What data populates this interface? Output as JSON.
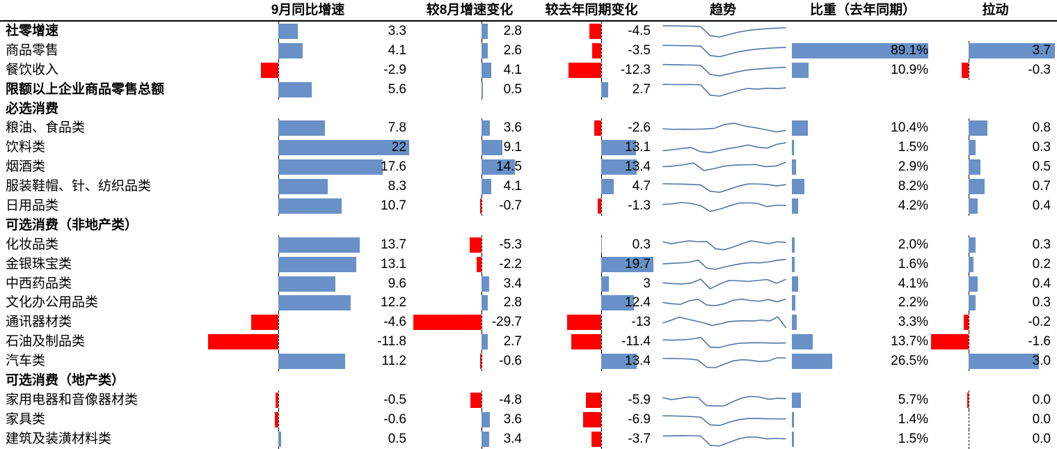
{
  "colors": {
    "positive_bar": "#6991C8",
    "negative_bar": "#FF0000",
    "sparkline": "#4F76A3",
    "axis_line": "#000000",
    "header_rule": "#000000",
    "text": "#000000"
  },
  "chart_data": {
    "type": "table",
    "title": "",
    "columns": [
      "9月同比增速",
      "较8月增速变化",
      "较去年同期变化",
      "趋势",
      "比重（去年同期）",
      "拉动"
    ],
    "bar_ranges": {
      "yoy": [
        -11.8,
        22
      ],
      "vs_aug": [
        -29.7,
        14.5
      ],
      "vs_last_year": [
        -13,
        19.7
      ],
      "weight": [
        0,
        89.1
      ],
      "pull": [
        -1.6,
        3.7
      ]
    },
    "rows": [
      {
        "label": "社零增速",
        "bold": true,
        "yoy": 3.3,
        "yoy_str": "3.3",
        "vs_aug": 2.8,
        "vs_aug_str": "2.8",
        "vs_yr": -4.5,
        "vs_yr_str": "-4.5",
        "trend": [
          0.85,
          0.84,
          0.83,
          0.82,
          0.8,
          0.22,
          0.14,
          0.3,
          0.45,
          0.55,
          0.62,
          0.66,
          0.7,
          0.72
        ],
        "weight": null,
        "weight_str": "",
        "pull": null,
        "pull_str": ""
      },
      {
        "label": "商品零售",
        "bold": false,
        "yoy": 4.1,
        "yoy_str": "4.1",
        "vs_aug": 2.6,
        "vs_aug_str": "2.6",
        "vs_yr": -3.5,
        "vs_yr_str": "-3.5",
        "trend": [
          0.84,
          0.83,
          0.82,
          0.81,
          0.79,
          0.2,
          0.13,
          0.28,
          0.44,
          0.54,
          0.61,
          0.65,
          0.69,
          0.71
        ],
        "weight": 89.1,
        "weight_str": "89.1%",
        "pull": 3.7,
        "pull_str": "3.7"
      },
      {
        "label": "餐饮收入",
        "bold": false,
        "yoy": -2.9,
        "yoy_str": "-2.9",
        "vs_aug": 4.1,
        "vs_aug_str": "4.1",
        "vs_yr": -12.3,
        "vs_yr_str": "-12.3",
        "trend": [
          0.86,
          0.85,
          0.84,
          0.83,
          0.81,
          0.24,
          0.15,
          0.28,
          0.42,
          0.52,
          0.58,
          0.62,
          0.66,
          0.69
        ],
        "weight": 10.9,
        "weight_str": "10.9%",
        "pull": -0.3,
        "pull_str": "-0.3"
      },
      {
        "label": "限额以上企业商品零售总额",
        "bold": true,
        "yoy": 5.6,
        "yoy_str": "5.6",
        "vs_aug": 0.5,
        "vs_aug_str": "0.5",
        "vs_yr": 2.7,
        "vs_yr_str": "2.7",
        "trend": [
          0.84,
          0.83,
          0.82,
          0.83,
          0.81,
          0.16,
          0.1,
          0.28,
          0.46,
          0.58,
          0.54,
          0.6,
          0.57,
          0.62
        ],
        "weight": null,
        "weight_str": "",
        "pull": null,
        "pull_str": ""
      },
      {
        "label": "必选消费",
        "bold": true,
        "yoy": null,
        "yoy_str": "",
        "vs_aug": null,
        "vs_aug_str": "",
        "vs_yr": null,
        "vs_yr_str": "",
        "trend": null,
        "weight": null,
        "weight_str": "",
        "pull": null,
        "pull_str": ""
      },
      {
        "label": "粮油、食品类",
        "bold": false,
        "yoy": 7.8,
        "yoy_str": "7.8",
        "vs_aug": 3.6,
        "vs_aug_str": "3.6",
        "vs_yr": -2.6,
        "vs_yr_str": "-2.6",
        "trend": [
          0.45,
          0.42,
          0.43,
          0.42,
          0.44,
          0.48,
          0.72,
          0.8,
          0.62,
          0.52,
          0.4,
          0.26,
          0.35
        ],
        "weight": 10.4,
        "weight_str": "10.4%",
        "pull": 0.8,
        "pull_str": "0.8"
      },
      {
        "label": "饮料类",
        "bold": false,
        "yoy": 22,
        "yoy_str": "22",
        "vs_aug": 9.1,
        "vs_aug_str": "9.1",
        "vs_yr": 13.1,
        "vs_yr_str": "13.1",
        "trend": [
          0.3,
          0.36,
          0.44,
          0.5,
          0.24,
          0.18,
          0.32,
          0.44,
          0.54,
          0.66,
          0.52,
          0.46,
          0.7,
          0.8
        ],
        "weight": 1.5,
        "weight_str": "1.5%",
        "pull": 0.3,
        "pull_str": "0.3"
      },
      {
        "label": "烟酒类",
        "bold": false,
        "yoy": 17.6,
        "yoy_str": "17.6",
        "vs_aug": 14.5,
        "vs_aug_str": "14.5",
        "vs_yr": 13.4,
        "vs_yr_str": "13.4",
        "trend": [
          0.52,
          0.56,
          0.64,
          0.76,
          0.28,
          0.4,
          0.56,
          0.62,
          0.64,
          0.66,
          0.52,
          0.56,
          0.8
        ],
        "weight": 2.9,
        "weight_str": "2.9%",
        "pull": 0.5,
        "pull_str": "0.5"
      },
      {
        "label": "服装鞋帽、针、纺织品类",
        "bold": false,
        "yoy": 8.3,
        "yoy_str": "8.3",
        "vs_aug": 4.1,
        "vs_aug_str": "4.1",
        "vs_yr": 4.7,
        "vs_yr_str": "4.7",
        "trend": [
          0.68,
          0.66,
          0.65,
          0.63,
          0.6,
          0.2,
          0.14,
          0.32,
          0.52,
          0.66,
          0.66,
          0.63,
          0.54,
          0.62
        ],
        "weight": 8.2,
        "weight_str": "8.2%",
        "pull": 0.7,
        "pull_str": "0.7"
      },
      {
        "label": "日用品类",
        "bold": false,
        "yoy": 10.7,
        "yoy_str": "10.7",
        "vs_aug": -0.7,
        "vs_aug_str": "-0.7",
        "vs_yr": -1.3,
        "vs_yr_str": "-1.3",
        "trend": [
          0.6,
          0.64,
          0.72,
          0.66,
          0.52,
          0.16,
          0.3,
          0.5,
          0.68,
          0.7,
          0.66,
          0.46,
          0.55,
          0.53
        ],
        "weight": 4.2,
        "weight_str": "4.2%",
        "pull": 0.4,
        "pull_str": "0.4"
      },
      {
        "label": "可选消费（非地产类）",
        "bold": true,
        "yoy": null,
        "yoy_str": "",
        "vs_aug": null,
        "vs_aug_str": "",
        "vs_yr": null,
        "vs_yr_str": "",
        "trend": null,
        "weight": null,
        "weight_str": "",
        "pull": null,
        "pull_str": ""
      },
      {
        "label": "化妆品类",
        "bold": false,
        "yoy": 13.7,
        "yoy_str": "13.7",
        "vs_aug": -5.3,
        "vs_aug_str": "-5.3",
        "vs_yr": 0.3,
        "vs_yr_str": "0.3",
        "trend": [
          0.7,
          0.58,
          0.68,
          0.76,
          0.7,
          0.72,
          0.26,
          0.2,
          0.38,
          0.58,
          0.76,
          0.68,
          0.58,
          0.7,
          0.66
        ],
        "weight": 2.0,
        "weight_str": "2.0%",
        "pull": 0.3,
        "pull_str": "0.3"
      },
      {
        "label": "金银珠宝类",
        "bold": false,
        "yoy": 13.1,
        "yoy_str": "13.1",
        "vs_aug": -2.2,
        "vs_aug_str": "-2.2",
        "vs_yr": 19.7,
        "vs_yr_str": "19.7",
        "trend": [
          0.54,
          0.57,
          0.6,
          0.64,
          0.78,
          0.28,
          0.2,
          0.34,
          0.46,
          0.56,
          0.62,
          0.6,
          0.66,
          0.76,
          0.82
        ],
        "weight": 1.6,
        "weight_str": "1.6%",
        "pull": 0.2,
        "pull_str": "0.2"
      },
      {
        "label": "中西药品类",
        "bold": false,
        "yoy": 9.6,
        "yoy_str": "9.6",
        "vs_aug": 3.4,
        "vs_aug_str": "3.4",
        "vs_yr": 3,
        "vs_yr_str": "3",
        "trend": [
          0.58,
          0.52,
          0.5,
          0.56,
          0.8,
          0.2,
          0.5,
          0.72,
          0.7,
          0.66,
          0.72,
          0.78,
          0.54,
          0.8
        ],
        "weight": 4.1,
        "weight_str": "4.1%",
        "pull": 0.4,
        "pull_str": "0.4"
      },
      {
        "label": "文化办公用品类",
        "bold": false,
        "yoy": 12.2,
        "yoy_str": "12.2",
        "vs_aug": 2.8,
        "vs_aug_str": "2.8",
        "vs_yr": 12.4,
        "vs_yr_str": "12.4",
        "trend": [
          0.52,
          0.44,
          0.4,
          0.62,
          0.72,
          0.36,
          0.32,
          0.44,
          0.66,
          0.72,
          0.64,
          0.6,
          0.7,
          0.56,
          0.74
        ],
        "weight": 2.2,
        "weight_str": "2.2%",
        "pull": 0.3,
        "pull_str": "0.3"
      },
      {
        "label": "通讯器材类",
        "bold": false,
        "yoy": -4.6,
        "yoy_str": "-4.6",
        "vs_aug": -29.7,
        "vs_aug_str": "-29.7",
        "vs_yr": -13,
        "vs_yr_str": "-13",
        "trend": [
          0.46,
          0.62,
          0.82,
          0.7,
          0.58,
          0.46,
          0.3,
          0.4,
          0.54,
          0.58,
          0.6,
          0.58,
          0.64,
          0.58,
          0.84,
          0.14
        ],
        "weight": 3.3,
        "weight_str": "3.3%",
        "pull": -0.2,
        "pull_str": "-0.2"
      },
      {
        "label": "石油及制品类",
        "bold": false,
        "yoy": -11.8,
        "yoy_str": "-11.8",
        "vs_aug": 2.7,
        "vs_aug_str": "2.7",
        "vs_yr": -11.4,
        "vs_yr_str": "-11.4",
        "trend": [
          0.62,
          0.6,
          0.62,
          0.66,
          0.78,
          0.16,
          0.14,
          0.3,
          0.4,
          0.43,
          0.44,
          0.43,
          0.41,
          0.43
        ],
        "weight": 13.7,
        "weight_str": "13.7%",
        "pull": -1.6,
        "pull_str": "-1.6"
      },
      {
        "label": "汽车类",
        "bold": false,
        "yoy": 11.2,
        "yoy_str": "11.2",
        "vs_aug": -0.6,
        "vs_aug_str": "-0.6",
        "vs_yr": 13.4,
        "vs_yr_str": "13.4",
        "trend": [
          0.68,
          0.67,
          0.66,
          0.64,
          0.58,
          0.12,
          0.1,
          0.32,
          0.52,
          0.6,
          0.56,
          0.48,
          0.52,
          0.72,
          0.7
        ],
        "weight": 26.5,
        "weight_str": "26.5%",
        "pull": 3.0,
        "pull_str": "3.0"
      },
      {
        "label": "可选消费（地产类）",
        "bold": true,
        "yoy": null,
        "yoy_str": "",
        "vs_aug": null,
        "vs_aug_str": "",
        "vs_yr": null,
        "vs_yr_str": "",
        "trend": null,
        "weight": null,
        "weight_str": "",
        "pull": null,
        "pull_str": ""
      },
      {
        "label": "家用电器和音像器材类",
        "bold": false,
        "yoy": -0.5,
        "yoy_str": "-0.5",
        "vs_aug": -4.8,
        "vs_aug_str": "-4.8",
        "vs_yr": -5.9,
        "vs_yr_str": "-5.9",
        "trend": [
          0.66,
          0.54,
          0.62,
          0.7,
          0.66,
          0.16,
          0.14,
          0.15,
          0.42,
          0.64,
          0.74,
          0.7,
          0.56,
          0.62,
          0.6
        ],
        "weight": 5.7,
        "weight_str": "5.7%",
        "pull": -0.05,
        "pull_str": "0.0"
      },
      {
        "label": "家具类",
        "bold": false,
        "yoy": -0.6,
        "yoy_str": "-0.6",
        "vs_aug": 3.6,
        "vs_aug_str": "3.6",
        "vs_yr": -6.9,
        "vs_yr_str": "-6.9",
        "trend": [
          0.75,
          0.74,
          0.72,
          0.7,
          0.66,
          0.18,
          0.14,
          0.34,
          0.5,
          0.58,
          0.58,
          0.56,
          0.55,
          0.55
        ],
        "weight": 1.4,
        "weight_str": "1.4%",
        "pull": 0,
        "pull_str": "0.0"
      },
      {
        "label": "建筑及装潢材料类",
        "bold": false,
        "yoy": 0.5,
        "yoy_str": "0.5",
        "vs_aug": 3.4,
        "vs_aug_str": "3.4",
        "vs_yr": -3.7,
        "vs_yr_str": "-3.7",
        "trend": [
          0.7,
          0.71,
          0.73,
          0.72,
          0.7,
          0.12,
          0.08,
          0.3,
          0.52,
          0.64,
          0.62,
          0.52,
          0.55,
          0.52
        ],
        "weight": 1.5,
        "weight_str": "1.5%",
        "pull": 0,
        "pull_str": "0.0"
      }
    ]
  }
}
